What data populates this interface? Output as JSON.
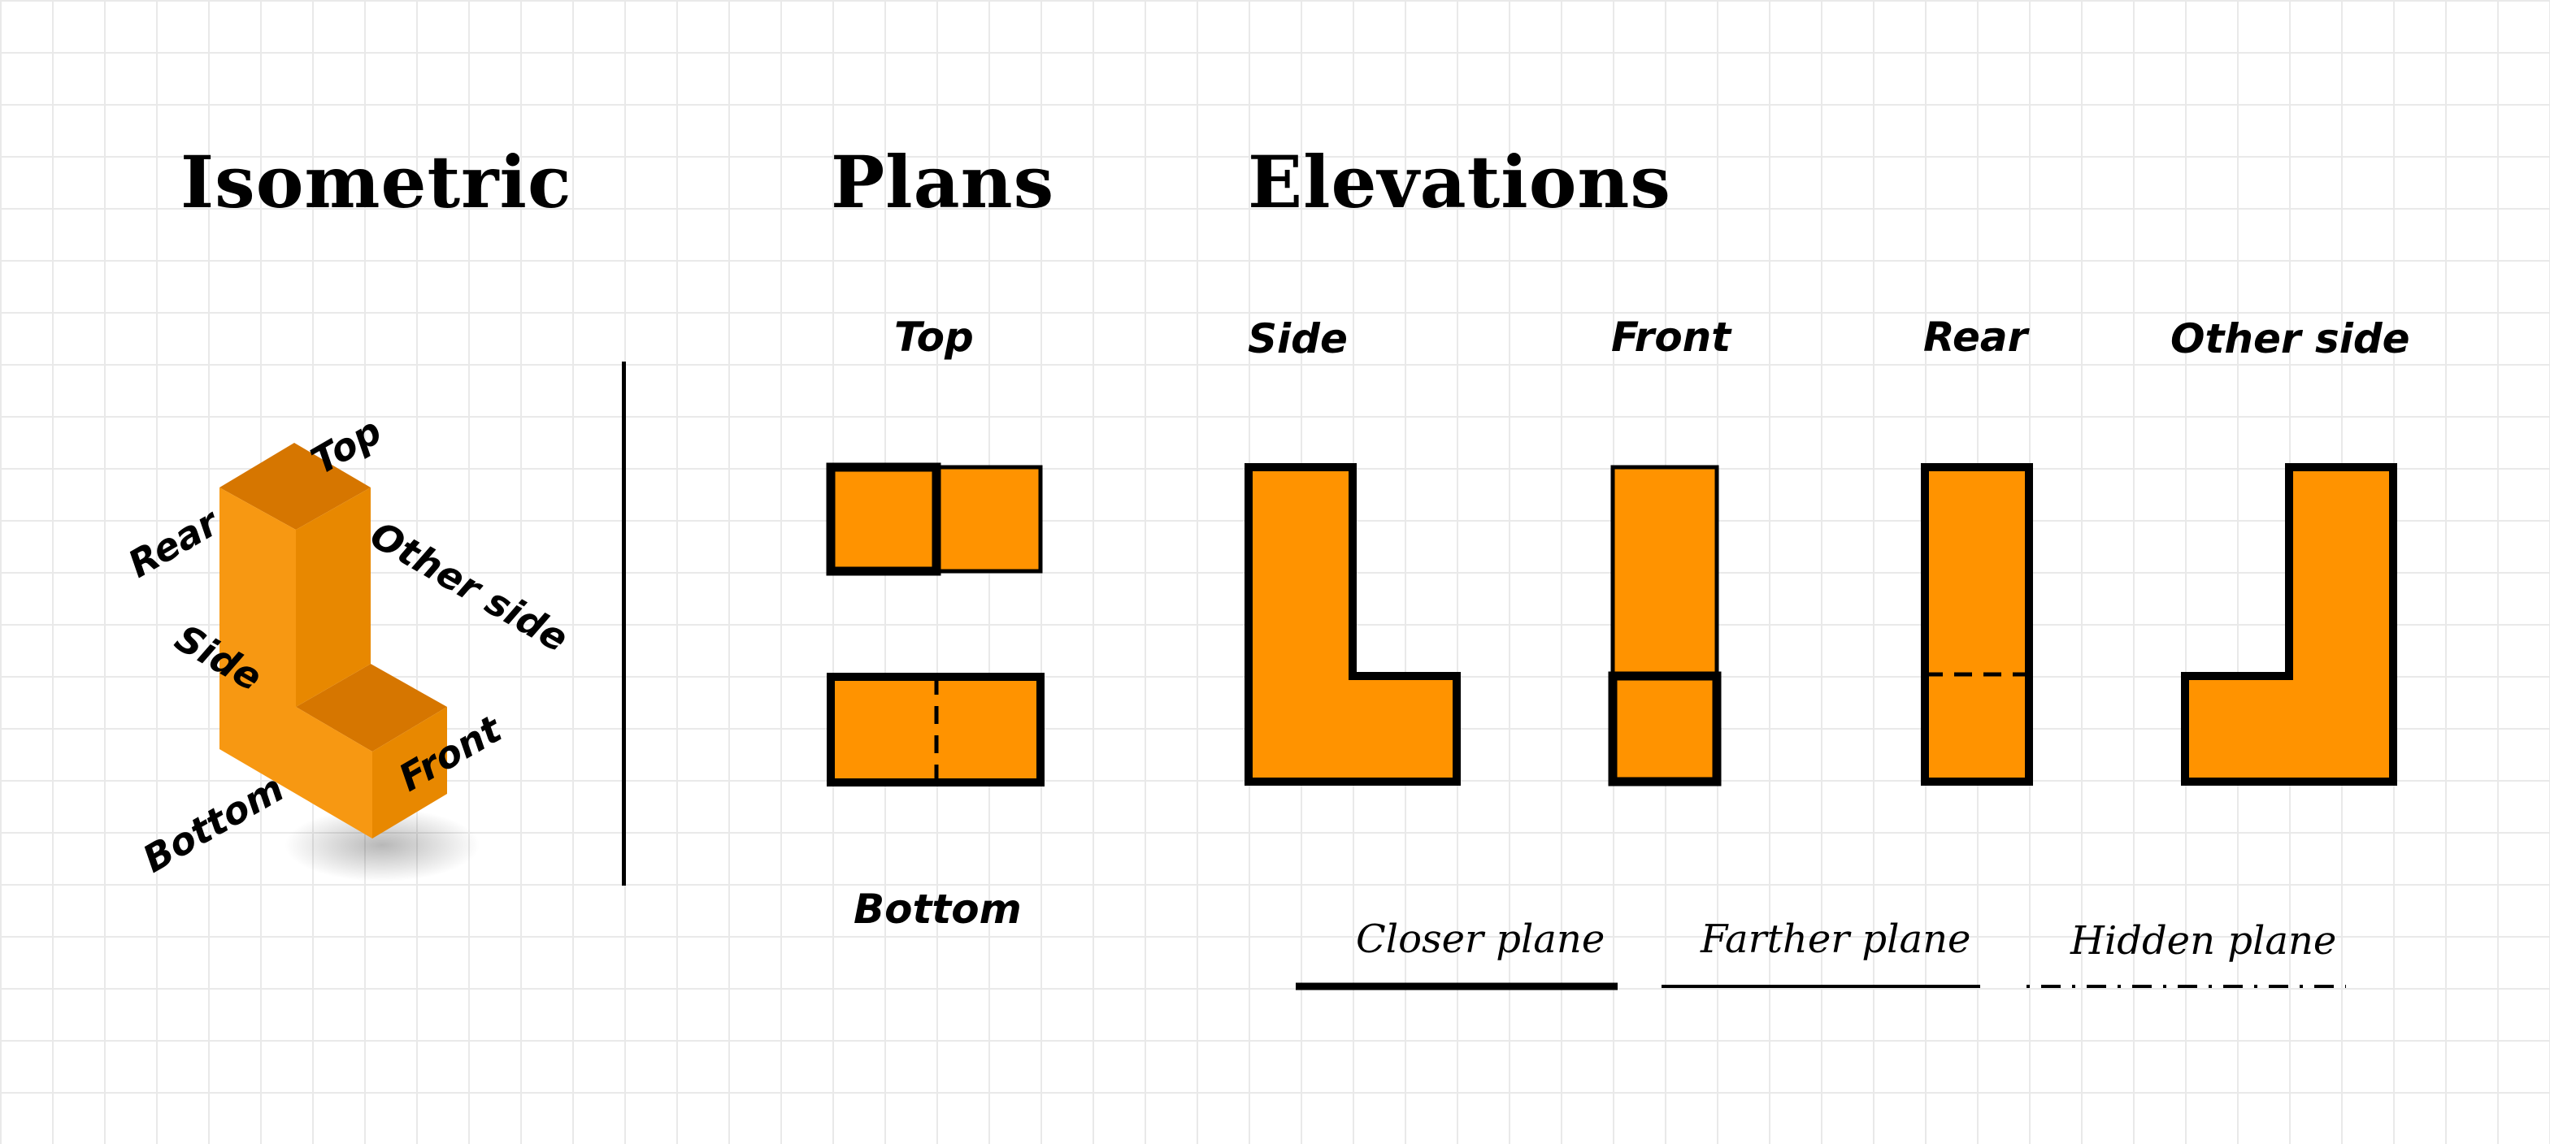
{
  "headings": {
    "isometric": "Isometric",
    "plans": "Plans",
    "elevations": "Elevations"
  },
  "iso_labels": {
    "top": "Top",
    "rear": "Rear",
    "other_side": "Other side",
    "side": "Side",
    "front": "Front",
    "bottom": "Bottom"
  },
  "plan_labels": {
    "top": "Top",
    "bottom": "Bottom"
  },
  "elevation_labels": {
    "side": "Side",
    "front": "Front",
    "rear": "Rear",
    "other_side": "Other side"
  },
  "legend": {
    "closer_plane": "Closer plane",
    "farther_plane": "Farther plane",
    "hidden_plane": "Hidden plane"
  },
  "colors": {
    "fill": "#FF9300",
    "fill_light": "#F79812",
    "fill_dark": "#D67600",
    "fill_right": "#E88800",
    "line": "#000000",
    "grid": "#E9E9E9"
  }
}
